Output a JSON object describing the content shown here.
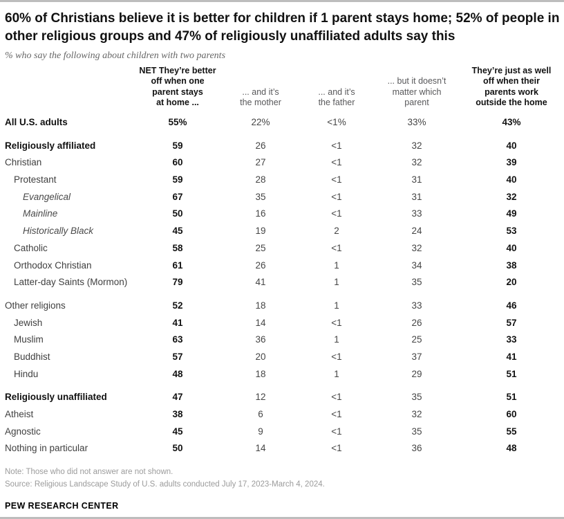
{
  "chart_data": {
    "type": "table",
    "title": "60% of Christians believe it is better for children if 1 parent stays home; 52% of people in other religious groups and 47% of religiously unaffiliated adults say this",
    "subtitle": "% who say the following about children with two parents",
    "columns": [
      {
        "label": "NET They’re better\noff when one\nparent stays\nat home ...",
        "emphasis": true
      },
      {
        "label": "... and it’s\nthe mother",
        "emphasis": false
      },
      {
        "label": "... and it’s\nthe father",
        "emphasis": false
      },
      {
        "label": "... but it doesn’t\nmatter which\nparent",
        "emphasis": false
      },
      {
        "label": "They’re just as well\noff when their\nparents work\noutside the home",
        "emphasis": true
      }
    ],
    "rows": [
      {
        "label": "All U.S. adults",
        "style": "bold",
        "indent": 0,
        "section_start": false,
        "values": [
          "55%",
          "22%",
          "<1%",
          "33%",
          "43%"
        ]
      },
      {
        "label": "Religiously affiliated",
        "style": "bold",
        "indent": 0,
        "section_start": true,
        "values": [
          "59",
          "26",
          "<1",
          "32",
          "40"
        ]
      },
      {
        "label": "Christian",
        "style": "regular",
        "indent": 0,
        "section_start": false,
        "values": [
          "60",
          "27",
          "<1",
          "32",
          "39"
        ]
      },
      {
        "label": "Protestant",
        "style": "regular",
        "indent": 1,
        "section_start": false,
        "values": [
          "59",
          "28",
          "<1",
          "31",
          "40"
        ]
      },
      {
        "label": "Evangelical",
        "style": "italic",
        "indent": 2,
        "section_start": false,
        "values": [
          "67",
          "35",
          "<1",
          "31",
          "32"
        ]
      },
      {
        "label": "Mainline",
        "style": "italic",
        "indent": 2,
        "section_start": false,
        "values": [
          "50",
          "16",
          "<1",
          "33",
          "49"
        ]
      },
      {
        "label": "Historically Black",
        "style": "italic",
        "indent": 2,
        "section_start": false,
        "values": [
          "45",
          "19",
          "2",
          "24",
          "53"
        ]
      },
      {
        "label": "Catholic",
        "style": "regular",
        "indent": 1,
        "section_start": false,
        "values": [
          "58",
          "25",
          "<1",
          "32",
          "40"
        ]
      },
      {
        "label": "Orthodox Christian",
        "style": "regular",
        "indent": 1,
        "section_start": false,
        "values": [
          "61",
          "26",
          "1",
          "34",
          "38"
        ]
      },
      {
        "label": "Latter-day Saints (Mormon)",
        "style": "regular",
        "indent": 1,
        "section_start": false,
        "values": [
          "79",
          "41",
          "1",
          "35",
          "20"
        ]
      },
      {
        "label": "Other religions",
        "style": "regular",
        "indent": 0,
        "section_start": true,
        "values": [
          "52",
          "18",
          "1",
          "33",
          "46"
        ]
      },
      {
        "label": "Jewish",
        "style": "regular",
        "indent": 1,
        "section_start": false,
        "values": [
          "41",
          "14",
          "<1",
          "26",
          "57"
        ]
      },
      {
        "label": "Muslim",
        "style": "regular",
        "indent": 1,
        "section_start": false,
        "values": [
          "63",
          "36",
          "1",
          "25",
          "33"
        ]
      },
      {
        "label": "Buddhist",
        "style": "regular",
        "indent": 1,
        "section_start": false,
        "values": [
          "57",
          "20",
          "<1",
          "37",
          "41"
        ]
      },
      {
        "label": "Hindu",
        "style": "regular",
        "indent": 1,
        "section_start": false,
        "values": [
          "48",
          "18",
          "1",
          "29",
          "51"
        ]
      },
      {
        "label": "Religiously unaffiliated",
        "style": "bold",
        "indent": 0,
        "section_start": true,
        "values": [
          "47",
          "12",
          "<1",
          "35",
          "51"
        ]
      },
      {
        "label": "Atheist",
        "style": "regular",
        "indent": 0,
        "section_start": false,
        "values": [
          "38",
          "6",
          "<1",
          "32",
          "60"
        ]
      },
      {
        "label": "Agnostic",
        "style": "regular",
        "indent": 0,
        "section_start": false,
        "values": [
          "45",
          "9",
          "<1",
          "35",
          "55"
        ]
      },
      {
        "label": "Nothing in particular",
        "style": "regular",
        "indent": 0,
        "section_start": false,
        "values": [
          "50",
          "14",
          "<1",
          "36",
          "48"
        ]
      }
    ]
  },
  "footer": {
    "note": "Note: Those who did not answer are not shown.",
    "source": "Source: Religious Landscape Study of U.S. adults conducted July 17, 2023-March 4, 2024.",
    "brand": "PEW RESEARCH CENTER"
  },
  "colors": {
    "title_text": "#111111",
    "subtitle_text": "#666666",
    "header_gray": "#58585a",
    "value_gray": "#454545",
    "muted_gray": "#9b9b9b",
    "rule_gray": "#bdbdbd"
  }
}
